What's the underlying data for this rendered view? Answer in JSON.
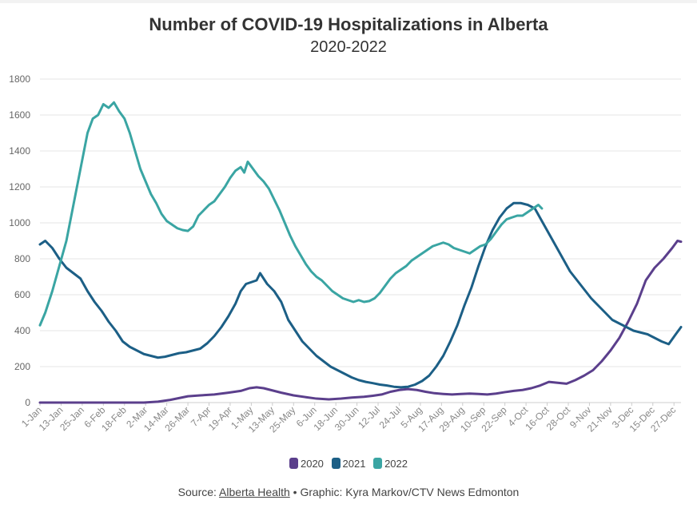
{
  "chart_data": {
    "type": "line",
    "title": "Number of COVID-19 Hospitalizations in Alberta",
    "subtitle": "2020-2022",
    "xlabel": "",
    "ylabel": "",
    "ylim": [
      0,
      1800
    ],
    "yticks": [
      0,
      200,
      400,
      600,
      800,
      1000,
      1200,
      1400,
      1600,
      1800
    ],
    "xlim": [
      1,
      365
    ],
    "xticks": [
      {
        "day": 1,
        "label": "1-Jan"
      },
      {
        "day": 13,
        "label": "13-Jan"
      },
      {
        "day": 25,
        "label": "25-Jan"
      },
      {
        "day": 37,
        "label": "6-Feb"
      },
      {
        "day": 49,
        "label": "18-Feb"
      },
      {
        "day": 61,
        "label": "2-Mar"
      },
      {
        "day": 73,
        "label": "14-Mar"
      },
      {
        "day": 85,
        "label": "26-Mar"
      },
      {
        "day": 97,
        "label": "7-Apr"
      },
      {
        "day": 109,
        "label": "19-Apr"
      },
      {
        "day": 121,
        "label": "1-May"
      },
      {
        "day": 133,
        "label": "13-May"
      },
      {
        "day": 145,
        "label": "25-May"
      },
      {
        "day": 157,
        "label": "6-Jun"
      },
      {
        "day": 169,
        "label": "18-Jun"
      },
      {
        "day": 181,
        "label": "30-Jun"
      },
      {
        "day": 193,
        "label": "12-Jul"
      },
      {
        "day": 205,
        "label": "24-Jul"
      },
      {
        "day": 217,
        "label": "5-Aug"
      },
      {
        "day": 229,
        "label": "17-Aug"
      },
      {
        "day": 241,
        "label": "29-Aug"
      },
      {
        "day": 253,
        "label": "10-Sep"
      },
      {
        "day": 265,
        "label": "22-Sep"
      },
      {
        "day": 277,
        "label": "4-Oct"
      },
      {
        "day": 289,
        "label": "16-Oct"
      },
      {
        "day": 301,
        "label": "28-Oct"
      },
      {
        "day": 313,
        "label": "9-Nov"
      },
      {
        "day": 325,
        "label": "21-Nov"
      },
      {
        "day": 337,
        "label": "3-Dec"
      },
      {
        "day": 349,
        "label": "15-Dec"
      },
      {
        "day": 361,
        "label": "27-Dec"
      }
    ],
    "grid": true,
    "legend": "bottom-center",
    "series": [
      {
        "name": "2020",
        "color": "#5b3f8c",
        "points": [
          [
            1,
            0
          ],
          [
            50,
            0
          ],
          [
            60,
            0
          ],
          [
            68,
            5
          ],
          [
            75,
            15
          ],
          [
            80,
            25
          ],
          [
            85,
            35
          ],
          [
            92,
            40
          ],
          [
            100,
            45
          ],
          [
            108,
            55
          ],
          [
            115,
            65
          ],
          [
            120,
            80
          ],
          [
            124,
            85
          ],
          [
            128,
            80
          ],
          [
            132,
            70
          ],
          [
            138,
            55
          ],
          [
            145,
            40
          ],
          [
            152,
            30
          ],
          [
            158,
            22
          ],
          [
            165,
            18
          ],
          [
            172,
            22
          ],
          [
            178,
            28
          ],
          [
            185,
            32
          ],
          [
            190,
            38
          ],
          [
            195,
            45
          ],
          [
            200,
            60
          ],
          [
            205,
            70
          ],
          [
            210,
            75
          ],
          [
            215,
            70
          ],
          [
            220,
            60
          ],
          [
            225,
            52
          ],
          [
            230,
            48
          ],
          [
            235,
            45
          ],
          [
            240,
            48
          ],
          [
            245,
            50
          ],
          [
            250,
            48
          ],
          [
            255,
            45
          ],
          [
            260,
            50
          ],
          [
            265,
            58
          ],
          [
            270,
            65
          ],
          [
            275,
            70
          ],
          [
            280,
            80
          ],
          [
            285,
            95
          ],
          [
            290,
            115
          ],
          [
            295,
            110
          ],
          [
            300,
            105
          ],
          [
            305,
            125
          ],
          [
            310,
            150
          ],
          [
            315,
            180
          ],
          [
            320,
            230
          ],
          [
            325,
            290
          ],
          [
            330,
            360
          ],
          [
            335,
            450
          ],
          [
            340,
            550
          ],
          [
            345,
            680
          ],
          [
            350,
            750
          ],
          [
            355,
            800
          ],
          [
            360,
            860
          ],
          [
            363,
            900
          ],
          [
            365,
            895
          ]
        ]
      },
      {
        "name": "2021",
        "color": "#1c5f86",
        "points": [
          [
            1,
            880
          ],
          [
            4,
            900
          ],
          [
            8,
            860
          ],
          [
            12,
            800
          ],
          [
            16,
            750
          ],
          [
            20,
            720
          ],
          [
            24,
            690
          ],
          [
            28,
            620
          ],
          [
            32,
            560
          ],
          [
            36,
            510
          ],
          [
            40,
            450
          ],
          [
            44,
            400
          ],
          [
            48,
            340
          ],
          [
            52,
            310
          ],
          [
            56,
            290
          ],
          [
            60,
            270
          ],
          [
            64,
            260
          ],
          [
            68,
            250
          ],
          [
            72,
            255
          ],
          [
            76,
            265
          ],
          [
            80,
            275
          ],
          [
            84,
            280
          ],
          [
            88,
            290
          ],
          [
            92,
            300
          ],
          [
            96,
            330
          ],
          [
            100,
            370
          ],
          [
            104,
            420
          ],
          [
            108,
            480
          ],
          [
            112,
            550
          ],
          [
            115,
            620
          ],
          [
            118,
            660
          ],
          [
            121,
            670
          ],
          [
            124,
            680
          ],
          [
            126,
            720
          ],
          [
            128,
            690
          ],
          [
            130,
            660
          ],
          [
            134,
            620
          ],
          [
            138,
            560
          ],
          [
            142,
            460
          ],
          [
            146,
            400
          ],
          [
            150,
            340
          ],
          [
            154,
            300
          ],
          [
            158,
            260
          ],
          [
            162,
            230
          ],
          [
            166,
            200
          ],
          [
            170,
            180
          ],
          [
            174,
            160
          ],
          [
            178,
            140
          ],
          [
            182,
            125
          ],
          [
            186,
            115
          ],
          [
            190,
            108
          ],
          [
            194,
            100
          ],
          [
            198,
            95
          ],
          [
            202,
            88
          ],
          [
            206,
            85
          ],
          [
            210,
            88
          ],
          [
            214,
            100
          ],
          [
            218,
            120
          ],
          [
            222,
            150
          ],
          [
            226,
            200
          ],
          [
            230,
            260
          ],
          [
            234,
            340
          ],
          [
            238,
            430
          ],
          [
            242,
            540
          ],
          [
            246,
            640
          ],
          [
            250,
            760
          ],
          [
            254,
            870
          ],
          [
            258,
            960
          ],
          [
            262,
            1030
          ],
          [
            266,
            1080
          ],
          [
            270,
            1110
          ],
          [
            274,
            1110
          ],
          [
            278,
            1100
          ],
          [
            282,
            1080
          ],
          [
            286,
            1010
          ],
          [
            290,
            940
          ],
          [
            294,
            870
          ],
          [
            298,
            800
          ],
          [
            302,
            730
          ],
          [
            306,
            680
          ],
          [
            310,
            630
          ],
          [
            314,
            580
          ],
          [
            318,
            540
          ],
          [
            322,
            500
          ],
          [
            326,
            460
          ],
          [
            330,
            440
          ],
          [
            334,
            420
          ],
          [
            338,
            400
          ],
          [
            342,
            390
          ],
          [
            346,
            380
          ],
          [
            350,
            360
          ],
          [
            354,
            340
          ],
          [
            358,
            325
          ],
          [
            362,
            380
          ],
          [
            365,
            420
          ]
        ]
      },
      {
        "name": "2022",
        "color": "#3aa5a3",
        "points": [
          [
            1,
            430
          ],
          [
            4,
            500
          ],
          [
            8,
            620
          ],
          [
            12,
            760
          ],
          [
            16,
            900
          ],
          [
            19,
            1050
          ],
          [
            22,
            1200
          ],
          [
            25,
            1350
          ],
          [
            28,
            1500
          ],
          [
            31,
            1580
          ],
          [
            34,
            1600
          ],
          [
            37,
            1660
          ],
          [
            40,
            1640
          ],
          [
            43,
            1670
          ],
          [
            46,
            1620
          ],
          [
            49,
            1580
          ],
          [
            52,
            1500
          ],
          [
            55,
            1400
          ],
          [
            58,
            1300
          ],
          [
            61,
            1230
          ],
          [
            64,
            1160
          ],
          [
            67,
            1110
          ],
          [
            70,
            1050
          ],
          [
            73,
            1010
          ],
          [
            76,
            990
          ],
          [
            79,
            970
          ],
          [
            82,
            960
          ],
          [
            85,
            955
          ],
          [
            88,
            980
          ],
          [
            91,
            1040
          ],
          [
            94,
            1070
          ],
          [
            97,
            1100
          ],
          [
            100,
            1120
          ],
          [
            103,
            1160
          ],
          [
            106,
            1200
          ],
          [
            109,
            1250
          ],
          [
            112,
            1290
          ],
          [
            115,
            1310
          ],
          [
            117,
            1280
          ],
          [
            119,
            1340
          ],
          [
            122,
            1300
          ],
          [
            125,
            1260
          ],
          [
            128,
            1230
          ],
          [
            131,
            1190
          ],
          [
            134,
            1130
          ],
          [
            137,
            1070
          ],
          [
            140,
            1000
          ],
          [
            143,
            930
          ],
          [
            146,
            870
          ],
          [
            149,
            820
          ],
          [
            152,
            770
          ],
          [
            155,
            730
          ],
          [
            158,
            700
          ],
          [
            161,
            680
          ],
          [
            164,
            650
          ],
          [
            167,
            620
          ],
          [
            170,
            600
          ],
          [
            173,
            580
          ],
          [
            176,
            570
          ],
          [
            179,
            560
          ],
          [
            182,
            570
          ],
          [
            185,
            560
          ],
          [
            188,
            565
          ],
          [
            191,
            580
          ],
          [
            194,
            610
          ],
          [
            197,
            650
          ],
          [
            200,
            690
          ],
          [
            203,
            720
          ],
          [
            206,
            740
          ],
          [
            209,
            760
          ],
          [
            212,
            790
          ],
          [
            215,
            810
          ],
          [
            218,
            830
          ],
          [
            221,
            850
          ],
          [
            224,
            870
          ],
          [
            227,
            880
          ],
          [
            230,
            890
          ],
          [
            233,
            880
          ],
          [
            236,
            860
          ],
          [
            239,
            850
          ],
          [
            242,
            840
          ],
          [
            245,
            830
          ],
          [
            248,
            850
          ],
          [
            251,
            870
          ],
          [
            254,
            880
          ],
          [
            257,
            910
          ],
          [
            260,
            950
          ],
          [
            263,
            990
          ],
          [
            266,
            1020
          ],
          [
            269,
            1030
          ],
          [
            272,
            1040
          ],
          [
            275,
            1040
          ],
          [
            278,
            1060
          ],
          [
            281,
            1080
          ],
          [
            284,
            1100
          ],
          [
            286,
            1080
          ]
        ]
      }
    ]
  },
  "source": {
    "prefix": "Source: ",
    "link_text": "Alberta Health",
    "bullet": " • ",
    "credit": "Graphic: Kyra Markov/CTV News Edmonton"
  }
}
